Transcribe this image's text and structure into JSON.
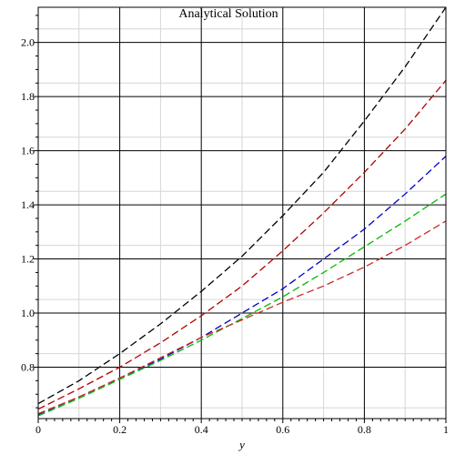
{
  "chart_data": {
    "type": "line",
    "title": "Analytical Solution",
    "xlabel": "y",
    "ylabel": "",
    "xlim": [
      0,
      1
    ],
    "ylim": [
      0.61,
      2.13
    ],
    "x_ticks": [
      0,
      0.2,
      0.4,
      0.6,
      0.8,
      1
    ],
    "x_tick_labels": [
      "0",
      "0.2",
      "0.4",
      "0.6",
      "0.8",
      "1"
    ],
    "y_ticks": [
      0.8,
      1.0,
      1.2,
      1.4,
      1.6,
      1.8,
      2.0
    ],
    "y_tick_labels": [
      "0.8",
      "1.0",
      "1.2",
      "1.4",
      "1.6",
      "1.8",
      "2.0"
    ],
    "grid": true,
    "legend": "none",
    "x": [
      0,
      0.1,
      0.2,
      0.3,
      0.4,
      0.5,
      0.6,
      0.7,
      0.8,
      0.9,
      1.0
    ],
    "series": [
      {
        "color": "#000000",
        "values": [
          0.665,
          0.75,
          0.85,
          0.96,
          1.08,
          1.21,
          1.36,
          1.52,
          1.71,
          1.91,
          2.13
        ]
      },
      {
        "color": "#b00000",
        "values": [
          0.645,
          0.72,
          0.8,
          0.89,
          0.99,
          1.1,
          1.23,
          1.37,
          1.52,
          1.68,
          1.86
        ]
      },
      {
        "color": "#0000cc",
        "values": [
          0.625,
          0.69,
          0.76,
          0.83,
          0.91,
          1.0,
          1.09,
          1.2,
          1.31,
          1.44,
          1.58
        ]
      },
      {
        "color": "#00bb00",
        "values": [
          0.62,
          0.685,
          0.755,
          0.825,
          0.9,
          0.98,
          1.06,
          1.15,
          1.245,
          1.34,
          1.44
        ]
      },
      {
        "color": "#cc2a2a",
        "values": [
          0.628,
          0.69,
          0.76,
          0.835,
          0.91,
          0.975,
          1.04,
          1.1,
          1.17,
          1.25,
          1.34
        ]
      }
    ]
  }
}
